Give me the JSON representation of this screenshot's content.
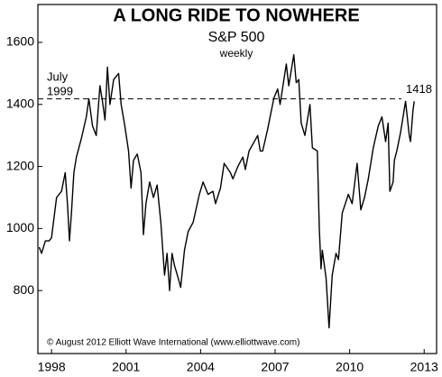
{
  "chart_data": {
    "type": "line",
    "title": "A LONG RIDE TO NOWHERE",
    "subtitle": "S&P 500",
    "frequency": "weekly",
    "source": "© August 2012 Elliott Wave International (www.elliottwave.com)",
    "color": "#000000",
    "reference_line": {
      "value": 1418,
      "note": [
        "July",
        "1999"
      ]
    },
    "xlim": [
      1997.45,
      2013.5
    ],
    "xticks": [
      1998,
      2001,
      2004,
      2007,
      2010,
      2013
    ],
    "ylim": [
      597,
      1722
    ],
    "yticks": [
      800,
      1000,
      1200,
      1400,
      1600
    ],
    "x": [
      1997.5,
      1997.6,
      1997.75,
      1997.9,
      1998.0,
      1998.2,
      1998.4,
      1998.55,
      1998.65,
      1998.72,
      1998.8,
      1998.9,
      1999.0,
      1999.2,
      1999.4,
      1999.5,
      1999.65,
      1999.8,
      1999.95,
      2000.05,
      2000.15,
      2000.25,
      2000.35,
      2000.5,
      2000.7,
      2000.8,
      2000.95,
      2001.1,
      2001.2,
      2001.3,
      2001.45,
      2001.6,
      2001.7,
      2001.8,
      2001.95,
      2002.1,
      2002.25,
      2002.4,
      2002.55,
      2002.65,
      2002.75,
      2002.85,
      2002.95,
      2003.1,
      2003.2,
      2003.35,
      2003.5,
      2003.7,
      2003.95,
      2004.1,
      2004.3,
      2004.5,
      2004.6,
      2004.8,
      2004.95,
      2005.2,
      2005.3,
      2005.5,
      2005.7,
      2005.8,
      2005.95,
      2006.3,
      2006.4,
      2006.5,
      2006.7,
      2006.95,
      2007.1,
      2007.2,
      2007.45,
      2007.55,
      2007.75,
      2007.85,
      2007.95,
      2008.05,
      2008.2,
      2008.4,
      2008.5,
      2008.7,
      2008.78,
      2008.85,
      2008.9,
      2008.95,
      2009.05,
      2009.17,
      2009.3,
      2009.45,
      2009.55,
      2009.7,
      2009.95,
      2010.1,
      2010.3,
      2010.45,
      2010.6,
      2010.75,
      2010.95,
      2011.15,
      2011.3,
      2011.45,
      2011.55,
      2011.62,
      2011.75,
      2011.8,
      2011.9,
      2012.05,
      2012.25,
      2012.4,
      2012.45,
      2012.55,
      2012.6
    ],
    "values": [
      940,
      920,
      960,
      960,
      970,
      1100,
      1120,
      1180,
      1070,
      960,
      1050,
      1180,
      1230,
      1290,
      1360,
      1418,
      1330,
      1300,
      1460,
      1410,
      1350,
      1520,
      1400,
      1480,
      1500,
      1400,
      1330,
      1250,
      1130,
      1220,
      1240,
      1180,
      980,
      1080,
      1150,
      1100,
      1140,
      1020,
      850,
      920,
      800,
      920,
      880,
      840,
      810,
      930,
      990,
      1020,
      1110,
      1150,
      1110,
      1120,
      1080,
      1130,
      1210,
      1180,
      1160,
      1200,
      1230,
      1190,
      1250,
      1300,
      1250,
      1250,
      1320,
      1420,
      1450,
      1400,
      1530,
      1460,
      1560,
      1470,
      1480,
      1340,
      1300,
      1400,
      1260,
      1250,
      1000,
      870,
      930,
      900,
      840,
      680,
      850,
      920,
      900,
      1050,
      1110,
      1080,
      1210,
      1060,
      1100,
      1160,
      1260,
      1330,
      1360,
      1280,
      1340,
      1120,
      1150,
      1220,
      1250,
      1310,
      1410,
      1300,
      1280,
      1380,
      1410
    ]
  }
}
